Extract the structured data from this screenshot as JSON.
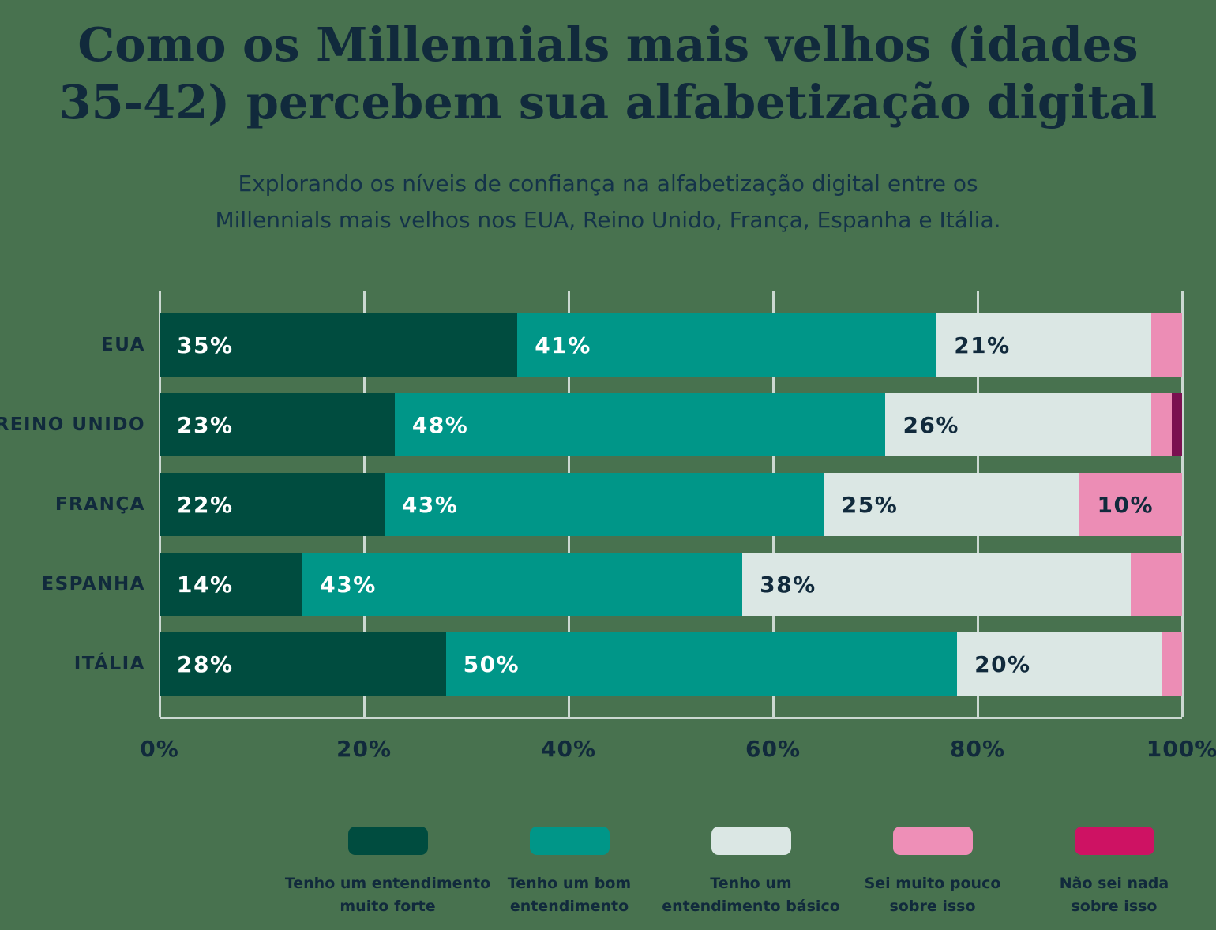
{
  "page": {
    "background_color": "#48724F",
    "text_color": "#112A3C"
  },
  "header": {
    "title_lines": [
      "Como os Millennials mais velhos (idades",
      "35-42) percebem sua alfabetização digital"
    ],
    "subtitle_lines": [
      "Explorando os níveis de confiança na alfabetização digital entre os",
      "Millennials mais velhos nos EUA, Reino Unido, França, Espanha e Itália."
    ]
  },
  "chart_data": {
    "type": "bar",
    "variant": "horizontal-stacked",
    "title": "Como os Millennials mais velhos (idades 35-42) percebem sua alfabetização digital",
    "categories": [
      "EUA",
      "REINO UNIDO",
      "FRANÇA",
      "ESPANHA",
      "ITÁLIA"
    ],
    "series": [
      {
        "name": "Tenho um entendimento muito forte",
        "color": "#004C3F",
        "label_color": "#FFFFFF",
        "values": [
          35,
          23,
          22,
          14,
          28
        ]
      },
      {
        "name": "Tenho um bom entendimento",
        "color": "#009688",
        "label_color": "#FFFFFF",
        "values": [
          41,
          48,
          43,
          43,
          50
        ]
      },
      {
        "name": "Tenho um entendimento básico",
        "color": "#DBE7E4",
        "label_color": "#112A3C",
        "values": [
          21,
          26,
          25,
          38,
          20
        ]
      },
      {
        "name": "Sei muito pouco sobre isso",
        "color": "#EC8DB5",
        "label_color": "#112A3C",
        "values": [
          3,
          2,
          10,
          5,
          2
        ]
      },
      {
        "name": "Não sei nada sobre isso",
        "color": "#7A1050",
        "label_color": "#FFFFFF",
        "values": [
          0,
          1,
          0,
          0,
          0
        ]
      }
    ],
    "value_suffix": "%",
    "min_label_value": 10,
    "xlim": [
      0,
      100
    ],
    "xticks": [
      "0%",
      "20%",
      "40%",
      "60%",
      "80%",
      "100%"
    ],
    "grid": true,
    "gridline_color": "#CBD8D1",
    "legend_position": "bottom",
    "legend": [
      {
        "color": "#004C3F",
        "label_lines": [
          "Tenho um entendimento",
          "muito forte"
        ]
      },
      {
        "color": "#009688",
        "label_lines": [
          "Tenho um bom",
          "entendimento"
        ]
      },
      {
        "color": "#DBE7E4",
        "label_lines": [
          "Tenho um",
          "entendimento básico"
        ]
      },
      {
        "color": "#EE8FB7",
        "label_lines": [
          "Sei muito pouco",
          "sobre isso"
        ]
      },
      {
        "color": "#CE1263",
        "label_lines": [
          "Não sei nada",
          "sobre isso"
        ]
      }
    ]
  }
}
